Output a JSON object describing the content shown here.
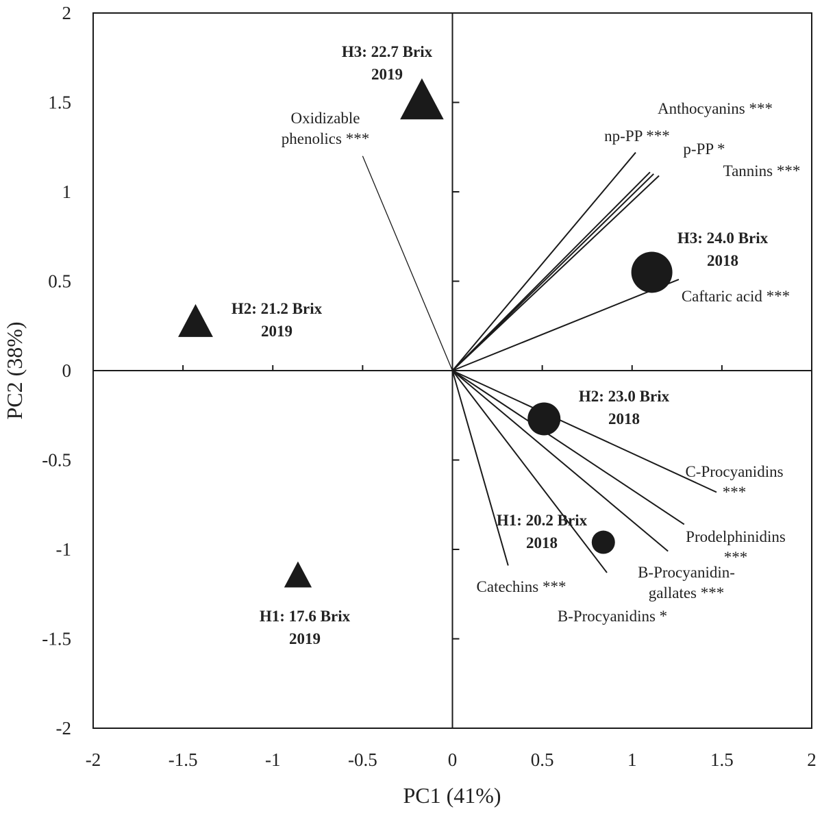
{
  "chart_data": {
    "type": "scatter",
    "subtype": "pca-biplot",
    "xlabel": "PC1 (41%)",
    "ylabel": "PC2 (38%)",
    "xlim": [
      -2,
      2
    ],
    "ylim": [
      -2,
      2
    ],
    "x_ticks": [
      {
        "v": -2,
        "label": "-2"
      },
      {
        "v": -1.5,
        "label": "-1.5"
      },
      {
        "v": -1,
        "label": "-1"
      },
      {
        "v": -0.5,
        "label": "-0.5"
      },
      {
        "v": 0,
        "label": "0"
      },
      {
        "v": 0.5,
        "label": "0.5"
      },
      {
        "v": 1,
        "label": "1"
      },
      {
        "v": 1.5,
        "label": "1.5"
      },
      {
        "v": 2,
        "label": "2"
      }
    ],
    "y_ticks": [
      {
        "v": -2,
        "label": "-2"
      },
      {
        "v": -1.5,
        "label": "-1.5"
      },
      {
        "v": -1,
        "label": "-1"
      },
      {
        "v": -0.5,
        "label": "-0.5"
      },
      {
        "v": 0,
        "label": "0"
      },
      {
        "v": 0.5,
        "label": "0.5"
      },
      {
        "v": 1,
        "label": "1"
      },
      {
        "v": 1.5,
        "label": "1.5"
      },
      {
        "v": 2,
        "label": "2"
      }
    ],
    "loadings": [
      {
        "name": "Oxidizable phenolics ***",
        "lines": [
          "Oxidizable",
          "phenolics ***"
        ],
        "x": -0.5,
        "y": 1.2
      },
      {
        "name": "np-PP ***",
        "lines": [
          "np-PP ***"
        ],
        "x": 1.02,
        "y": 1.22
      },
      {
        "name": "p-PP *",
        "lines": [
          "p-PP *"
        ],
        "x": 1.12,
        "y": 1.1
      },
      {
        "name": "Anthocyanins ***",
        "lines": [
          "Anthocyanins ***"
        ],
        "x": 1.1,
        "y": 1.11
      },
      {
        "name": "Tannins ***",
        "lines": [
          "Tannins ***"
        ],
        "x": 1.15,
        "y": 1.09
      },
      {
        "name": "Caftaric acid ***",
        "lines": [
          "Caftaric acid ***"
        ],
        "x": 1.26,
        "y": 0.51
      },
      {
        "name": "C-Procyanidins ***",
        "lines": [
          "C-Procyanidins",
          "***"
        ],
        "x": 1.47,
        "y": -0.68
      },
      {
        "name": "Prodelphinidins ***",
        "lines": [
          "Prodelphinidins",
          "***"
        ],
        "x": 1.29,
        "y": -0.86
      },
      {
        "name": "B-Procyanidin-gallates ***",
        "lines": [
          "B-Procyanidin-",
          "gallates ***"
        ],
        "x": 1.2,
        "y": -1.01
      },
      {
        "name": "B-Procyanidins *",
        "lines": [
          "B-Procyanidins *"
        ],
        "x": 0.86,
        "y": -1.13
      },
      {
        "name": "Catechins ***",
        "lines": [
          "Catechins ***"
        ],
        "x": 0.31,
        "y": -1.09
      }
    ],
    "samples": [
      {
        "name": "H1: 17.6 Brix 2019",
        "lines": [
          "H1: 17.6 Brix",
          "2019"
        ],
        "year": "2019",
        "marker": "triangle",
        "x": -0.86,
        "y": -1.14
      },
      {
        "name": "H2: 21.2 Brix 2019",
        "lines": [
          "H2: 21.2 Brix",
          "2019"
        ],
        "year": "2019",
        "marker": "triangle",
        "x": -1.43,
        "y": 0.28
      },
      {
        "name": "H3: 22.7 Brix 2019",
        "lines": [
          "H3: 22.7 Brix",
          "2019"
        ],
        "year": "2019",
        "marker": "triangle",
        "x": -0.17,
        "y": 1.52
      },
      {
        "name": "H1: 20.2 Brix 2018",
        "lines": [
          "H1: 20.2 Brix",
          "2018"
        ],
        "year": "2018",
        "marker": "circle",
        "x": 0.84,
        "y": -0.96
      },
      {
        "name": "H2: 23.0 Brix 2018",
        "lines": [
          "H2: 23.0 Brix",
          "2018"
        ],
        "year": "2018",
        "marker": "circle",
        "x": 0.51,
        "y": -0.27
      },
      {
        "name": "H3: 24.0 Brix 2018",
        "lines": [
          "H3: 24.0 Brix",
          "2018"
        ],
        "year": "2018",
        "marker": "circle",
        "x": 1.11,
        "y": 0.55
      }
    ],
    "colors": {
      "marker": "#1a1a1a",
      "line": "#1a1a1a",
      "text": "#222222"
    }
  }
}
